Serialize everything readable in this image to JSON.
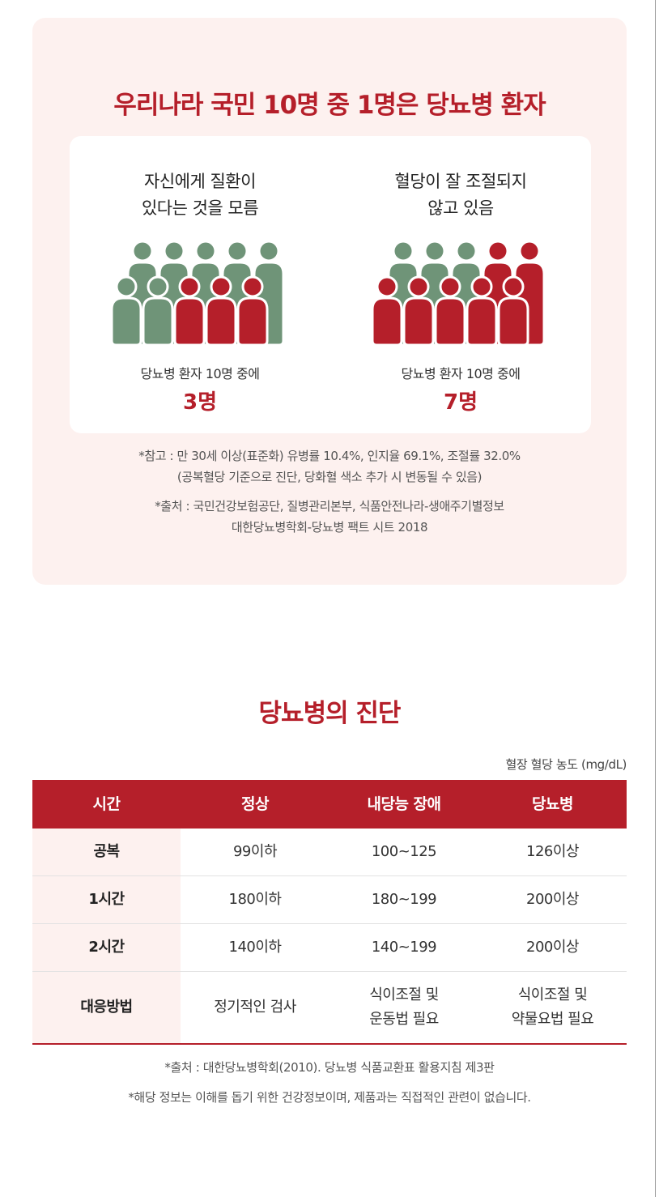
{
  "headline": "우리나라 국민 10명 중 1명은 당뇨병 환자",
  "colors": {
    "accent": "#b51f2a",
    "green": "#6f9478",
    "panel_bg": "#fdf1ef"
  },
  "stats": [
    {
      "title_line1": "자신에게 질환이",
      "title_line2": "있다는 것을 모름",
      "caption": "당뇨병 환자 10명 중에",
      "value": "3명",
      "highlighted_count": 3,
      "total_count": 10
    },
    {
      "title_line1": "혈당이 잘 조절되지",
      "title_line2": "않고 있음",
      "caption": "당뇨병 환자 10명 중에",
      "value": "7명",
      "highlighted_count": 7,
      "total_count": 10
    }
  ],
  "notes": {
    "ref_line1": "*참고 : 만 30세 이상(표준화) 유병률 10.4%, 인지율 69.1%, 조절률 32.0%",
    "ref_line2": "(공복혈당 기준으로 진단, 당화혈 색소 추가 시 변동될 수 있음)",
    "src_line1": "*출처 : 국민건강보험공단, 질병관리본부, 식품안전나라-생애주기별정보",
    "src_line2": "대한당뇨병학회-당뇨병 팩트 시트 2018"
  },
  "diagnosis": {
    "title": "당뇨병의 진단",
    "unit": "혈장 혈당 농도 (mg/dL)",
    "headers": [
      "시간",
      "정상",
      "내당능 장애",
      "당뇨병"
    ],
    "rows": [
      [
        "공복",
        "99이하",
        "100~125",
        "126이상"
      ],
      [
        "1시간",
        "180이하",
        "180~199",
        "200이상"
      ],
      [
        "2시간",
        "140이하",
        "140~199",
        "200이상"
      ]
    ],
    "last_row": {
      "label": "대응방법",
      "normal": "정기적인 검사",
      "impaired_line1": "식이조절 및",
      "impaired_line2": "운동법 필요",
      "diabetes_line1": "식이조절 및",
      "diabetes_line2": "약물요법 필요"
    },
    "footnote1": "*출처 : 대한당뇨병학회(2010). 당뇨병 식품교환표 활용지침 제3판",
    "footnote2": "*해당 정보는 이해를 돕기 위한 건강정보이며, 제품과는 직접적인 관련이 없습니다."
  }
}
